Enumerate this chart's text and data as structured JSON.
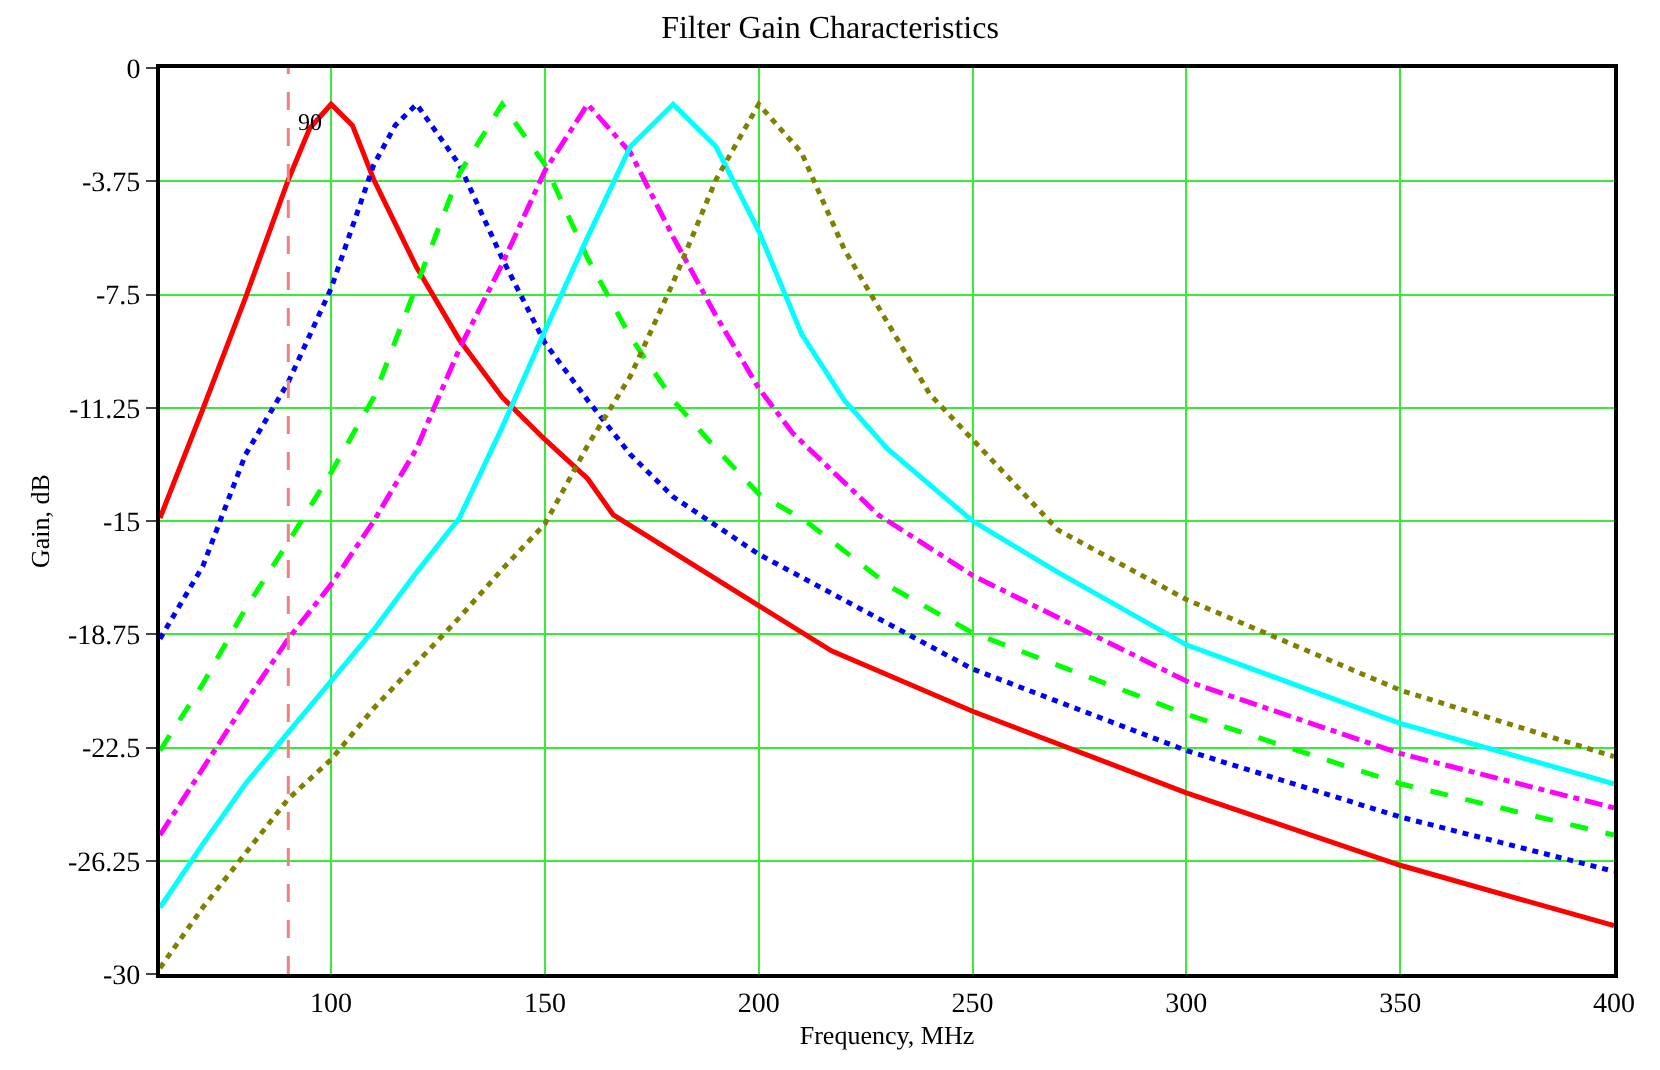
{
  "chart_data": {
    "type": "line",
    "title": "Filter Gain Characteristics",
    "xlabel": "Frequency, MHz",
    "ylabel": "Gain, dB",
    "xlim": [
      60,
      400
    ],
    "xticks": [
      100,
      150,
      200,
      250,
      300,
      350,
      400
    ],
    "ylim": [
      -30,
      0
    ],
    "yticks": [
      0,
      -3.75,
      -7.5,
      -11.25,
      -15,
      -18.75,
      -22.5,
      -26.25,
      -30
    ],
    "grid": true,
    "ref_lines": [
      {
        "axis": "x",
        "value": 90,
        "label": "90",
        "color": "#f08080",
        "line_style": "dashed"
      }
    ],
    "series": [
      {
        "color": "#ff0000",
        "line_style": "solid",
        "x": [
          60,
          70,
          80,
          90,
          95,
          100,
          105,
          110,
          120,
          130,
          140,
          150,
          160,
          166,
          200,
          217,
          250,
          300,
          350,
          400
        ],
        "values": [
          -14.9,
          -11.3,
          -7.6,
          -3.7,
          -2.0,
          -1.2,
          -1.9,
          -3.7,
          -6.6,
          -9.0,
          -10.9,
          -12.3,
          -13.6,
          -14.8,
          -17.8,
          -19.3,
          -21.3,
          -24.0,
          -26.4,
          -28.4
        ]
      },
      {
        "color": "#0000ff",
        "line_style": "dotted",
        "x": [
          60,
          70,
          80,
          90,
          100,
          110,
          115,
          120,
          125,
          130,
          140,
          150,
          160,
          170,
          180,
          200,
          250,
          300,
          350,
          400
        ],
        "values": [
          -18.9,
          -16.5,
          -12.8,
          -10.4,
          -7.3,
          -3.2,
          -1.9,
          -1.2,
          -2.2,
          -3.2,
          -6.3,
          -9.1,
          -11.0,
          -12.8,
          -14.2,
          -16.1,
          -19.9,
          -22.6,
          -24.8,
          -26.6
        ]
      },
      {
        "color": "#00ff00",
        "line_style": "dashed",
        "x": [
          60,
          70,
          80,
          90,
          100,
          110,
          120,
          130,
          140,
          150,
          160,
          170,
          180,
          190,
          200,
          211,
          231,
          250,
          300,
          350,
          400
        ],
        "values": [
          -22.6,
          -20.4,
          -17.9,
          -15.7,
          -13.4,
          -10.9,
          -7.2,
          -3.5,
          -1.2,
          -3.2,
          -6.3,
          -8.9,
          -11.0,
          -12.6,
          -14.1,
          -15.0,
          -17.2,
          -18.7,
          -21.4,
          -23.7,
          -25.4
        ]
      },
      {
        "color": "#ff00ff",
        "line_style": "dashdot",
        "x": [
          60,
          70,
          80,
          90,
          100,
          110,
          120,
          130,
          140,
          150,
          160,
          170,
          180,
          190,
          200,
          208,
          228,
          250,
          300,
          350,
          400
        ],
        "values": [
          -25.4,
          -23.2,
          -21.0,
          -18.9,
          -17.1,
          -15.0,
          -12.6,
          -9.3,
          -6.5,
          -3.4,
          -1.2,
          -2.8,
          -5.6,
          -8.2,
          -10.6,
          -12.1,
          -14.8,
          -16.8,
          -20.3,
          -22.7,
          -24.5
        ]
      },
      {
        "color": "#00ffff",
        "line_style": "solid",
        "x": [
          60,
          70,
          80,
          90,
          100,
          110,
          120,
          130,
          140,
          150,
          160,
          170,
          180,
          190,
          200,
          210,
          220,
          230,
          250,
          270,
          300,
          350,
          400
        ],
        "values": [
          -27.8,
          -25.7,
          -23.7,
          -22.0,
          -20.3,
          -18.6,
          -16.7,
          -14.9,
          -11.9,
          -8.7,
          -5.6,
          -2.6,
          -1.2,
          -2.6,
          -5.4,
          -8.8,
          -11.0,
          -12.6,
          -15.0,
          -16.7,
          -19.1,
          -21.7,
          -23.7
        ]
      },
      {
        "color": "#808000",
        "line_style": "dotted",
        "x": [
          60,
          70,
          80,
          90,
          100,
          110,
          120,
          130,
          140,
          150,
          160,
          170,
          180,
          190,
          200,
          210,
          220,
          230,
          240,
          250,
          270,
          300,
          350,
          400
        ],
        "values": [
          -29.8,
          -27.8,
          -26.0,
          -24.2,
          -22.9,
          -21.2,
          -19.7,
          -18.2,
          -16.6,
          -15.1,
          -12.5,
          -10.2,
          -7.1,
          -3.7,
          -1.2,
          -2.8,
          -6.0,
          -8.4,
          -10.8,
          -12.3,
          -15.3,
          -17.6,
          -20.6,
          -22.8
        ]
      }
    ]
  }
}
